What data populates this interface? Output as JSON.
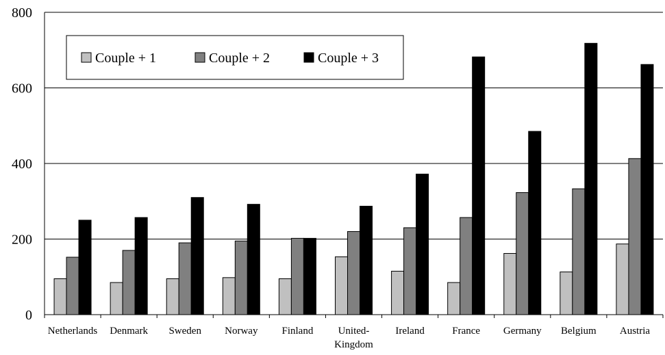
{
  "chart_data": {
    "type": "bar",
    "title": "",
    "xlabel": "",
    "ylabel": "",
    "ylim": [
      0,
      800
    ],
    "yticks": [
      0,
      200,
      400,
      600,
      800
    ],
    "grid": "horizontal",
    "legend_position": "top-left",
    "categories": [
      [
        "Netherlands"
      ],
      [
        "Denmark"
      ],
      [
        "Sweden"
      ],
      [
        "Norway"
      ],
      [
        "Finland"
      ],
      [
        "United-",
        "Kingdom"
      ],
      [
        "Ireland"
      ],
      [
        "France"
      ],
      [
        "Germany"
      ],
      [
        "Belgium"
      ],
      [
        "Austria"
      ]
    ],
    "series": [
      {
        "name": "Couple + 1",
        "color": "#c0c0c0",
        "values": [
          95,
          85,
          95,
          98,
          95,
          153,
          115,
          85,
          162,
          113,
          187
        ]
      },
      {
        "name": "Couple + 2",
        "color": "#808080",
        "values": [
          152,
          170,
          190,
          195,
          202,
          220,
          230,
          257,
          323,
          333,
          413
        ]
      },
      {
        "name": "Couple + 3",
        "color": "#000000",
        "values": [
          250,
          257,
          310,
          292,
          202,
          287,
          372,
          682,
          485,
          718,
          662
        ]
      }
    ]
  }
}
